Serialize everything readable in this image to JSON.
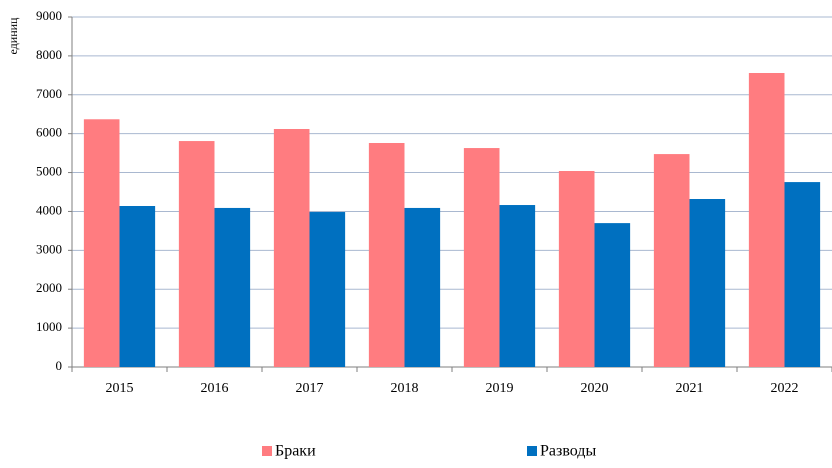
{
  "chart_data": {
    "type": "bar",
    "ylabel": "единиц",
    "categories": [
      "2015",
      "2016",
      "2017",
      "2018",
      "2019",
      "2020",
      "2021",
      "2022"
    ],
    "series": [
      {
        "name": "Браки",
        "color": "#ff7c80",
        "values": [
          6370,
          5810,
          6120,
          5760,
          5630,
          5040,
          5475,
          7560
        ]
      },
      {
        "name": "Разводы",
        "color": "#0070c0",
        "values": [
          4140,
          4090,
          3985,
          4090,
          4165,
          3700,
          4320,
          4755
        ]
      }
    ],
    "ylim": [
      0,
      9000
    ],
    "yticks": [
      0,
      1000,
      2000,
      3000,
      4000,
      5000,
      6000,
      7000,
      8000,
      9000
    ],
    "grid": true
  }
}
